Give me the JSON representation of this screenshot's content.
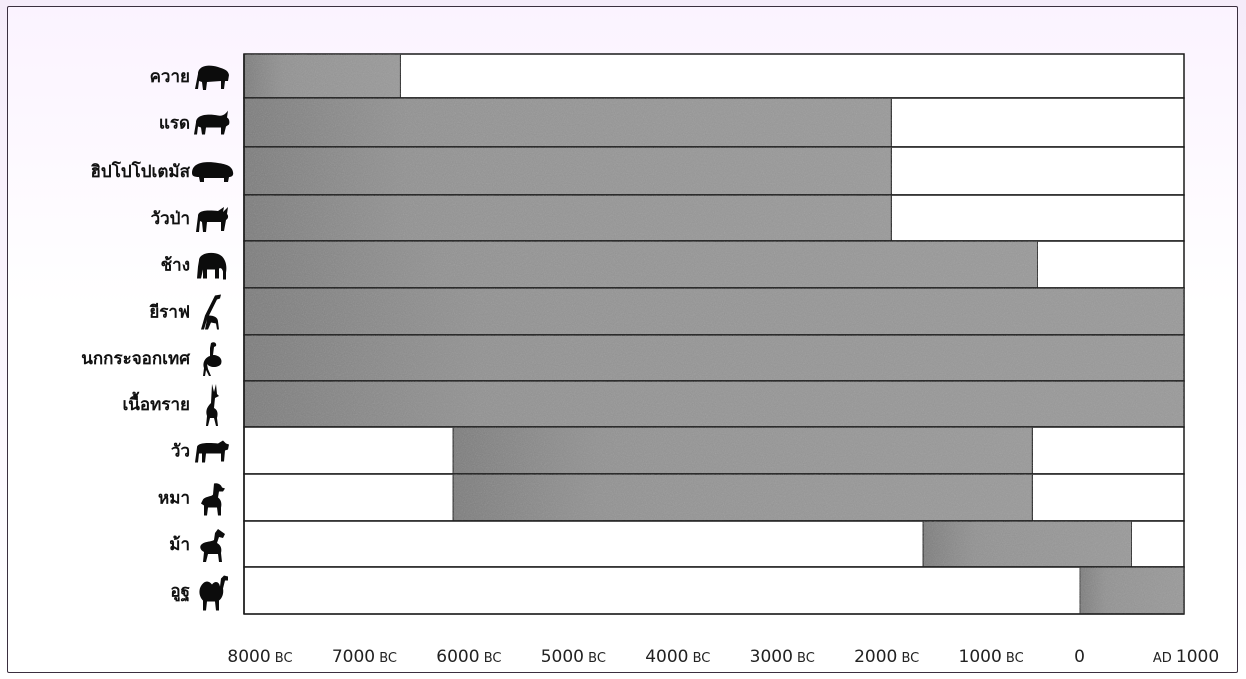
{
  "chart_data": {
    "type": "bar",
    "subtype": "timeline-range",
    "title": "",
    "xlabel": "",
    "ylabel": "",
    "x_axis_scale": "years (negative = BC, positive = AD)",
    "xlim": [
      -8000,
      1000
    ],
    "x_ticks": [
      {
        "value": -8000,
        "num": "8000",
        "suffix": "BC"
      },
      {
        "value": -7000,
        "num": "7000",
        "suffix": "BC"
      },
      {
        "value": -6000,
        "num": "6000",
        "suffix": "BC"
      },
      {
        "value": -5000,
        "num": "5000",
        "suffix": "BC"
      },
      {
        "value": -4000,
        "num": "4000",
        "suffix": "BC"
      },
      {
        "value": -3000,
        "num": "3000",
        "suffix": "BC"
      },
      {
        "value": -2000,
        "num": "2000",
        "suffix": "BC"
      },
      {
        "value": -1000,
        "num": "1000",
        "suffix": "BC"
      },
      {
        "value": 0,
        "num": "0",
        "suffix": ""
      },
      {
        "value": 1000,
        "num": "1000",
        "prefix": "AD"
      }
    ],
    "grid": false,
    "legend": "none",
    "fill_color": "#8f8f8f",
    "categories": [
      {
        "label": "ควาย",
        "icon": "buffalo-icon",
        "start": -8000,
        "end": -6500
      },
      {
        "label": "แรด",
        "icon": "rhinoceros-icon",
        "start": -8000,
        "end": -1800
      },
      {
        "label": "ฮิปโปโปเตมัส",
        "icon": "hippopotamus-icon",
        "start": -8000,
        "end": -1800
      },
      {
        "label": "วัวป่า",
        "icon": "wild-ox-icon",
        "start": -8000,
        "end": -1800
      },
      {
        "label": "ช้าง",
        "icon": "elephant-icon",
        "start": -8000,
        "end": -400
      },
      {
        "label": "ยีราฟ",
        "icon": "giraffe-icon",
        "start": -8000,
        "end": 1000
      },
      {
        "label": "นกกระจอกเทศ",
        "icon": "ostrich-icon",
        "start": -8000,
        "end": 1000
      },
      {
        "label": "เนื้อทราย",
        "icon": "gazelle-icon",
        "start": -8000,
        "end": 1000
      },
      {
        "label": "วัว",
        "icon": "cattle-icon",
        "start": -6000,
        "end": -450
      },
      {
        "label": "หมา",
        "icon": "dog-icon",
        "start": -6000,
        "end": -450
      },
      {
        "label": "ม้า",
        "icon": "horse-icon",
        "start": -1500,
        "end": 500
      },
      {
        "label": "อูฐ",
        "icon": "camel-icon",
        "start": 0,
        "end": 1000
      }
    ]
  }
}
